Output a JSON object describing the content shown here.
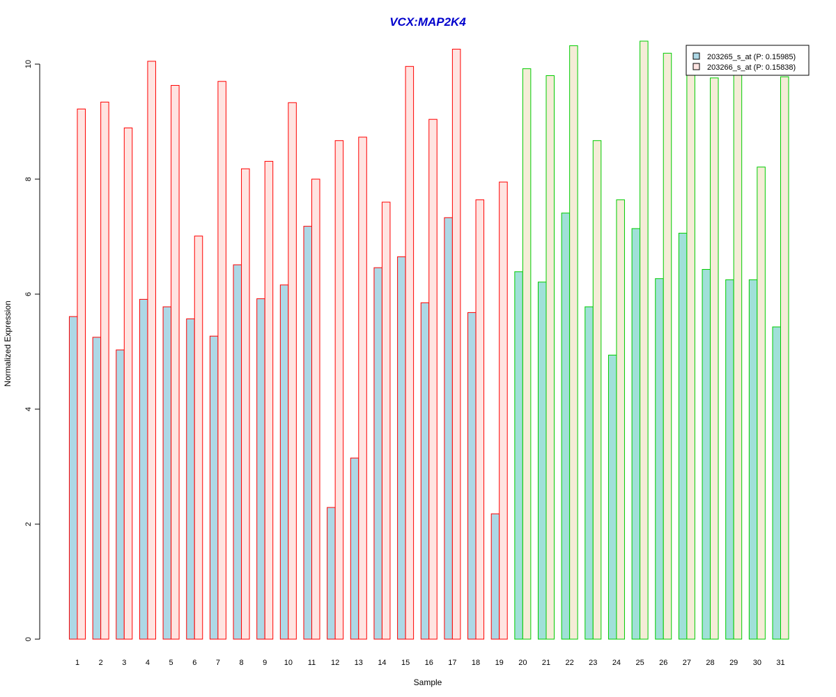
{
  "chart_data": {
    "type": "bar",
    "title": "VCX:MAP2K4",
    "xlabel": "Sample",
    "ylabel": "Normalized Expression",
    "ylim": [
      0,
      10.5
    ],
    "yticks": [
      0,
      2,
      4,
      6,
      8,
      10
    ],
    "grid": false,
    "legend_position": "top-right",
    "categories": [
      "1",
      "2",
      "3",
      "4",
      "5",
      "6",
      "7",
      "8",
      "9",
      "10",
      "11",
      "12",
      "13",
      "14",
      "15",
      "16",
      "17",
      "18",
      "19",
      "20",
      "21",
      "22",
      "23",
      "24",
      "25",
      "26",
      "27",
      "28",
      "29",
      "30",
      "31"
    ],
    "group_sizes": [
      19,
      12
    ],
    "series": [
      {
        "name": "203265_s_at (P: 0.15985)",
        "values": [
          5.61,
          5.25,
          5.03,
          5.91,
          5.78,
          5.57,
          5.27,
          6.51,
          5.92,
          6.16,
          7.18,
          2.29,
          3.15,
          6.46,
          6.65,
          5.85,
          7.33,
          5.68,
          2.18,
          6.39,
          6.21,
          7.41,
          5.78,
          4.94,
          7.14,
          6.27,
          7.06,
          6.43,
          6.25,
          6.25,
          5.43
        ]
      },
      {
        "name": "203266_s_at (P: 0.15838)",
        "values": [
          9.22,
          9.34,
          8.89,
          10.05,
          9.63,
          7.01,
          9.7,
          8.18,
          8.31,
          9.33,
          8.0,
          8.67,
          8.73,
          7.6,
          9.96,
          9.04,
          10.26,
          7.64,
          7.95,
          9.92,
          9.8,
          10.32,
          8.67,
          7.64,
          10.4,
          10.19,
          9.88,
          9.76,
          9.85,
          8.21,
          9.78
        ]
      }
    ],
    "colors": {
      "group1_border": "#ff0000",
      "group2_border": "#00cc00",
      "series1_fill_group1": "#add8e6",
      "series2_fill_group1": "#ffe4e1",
      "series1_fill_group2": "#a0e0d8",
      "series2_fill_group2": "#f5ecd7",
      "title": "#0000cc"
    }
  }
}
